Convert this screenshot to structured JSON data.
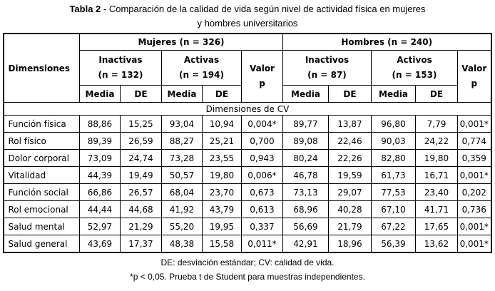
{
  "title": {
    "bold": "Tabla 2",
    "line1_rest": " - Comparación de la calidad de vida según nivel de actividad física en mujeres",
    "line2": "y hombres universitarios"
  },
  "table": {
    "corner_header": "Dimensiones",
    "section_header": "Dimensiones de CV",
    "media_label": "Media",
    "de_label": "DE",
    "valor_label": "Valor",
    "p_label": "p",
    "groups": [
      {
        "label": "Mujeres (n = 326)",
        "subgroups": [
          {
            "label": "Inactivas",
            "n": "(n = 132)"
          },
          {
            "label": "Activas",
            "n": "(n = 194)"
          }
        ]
      },
      {
        "label": "Hombres (n = 240)",
        "subgroups": [
          {
            "label": "Inactivos",
            "n": "(n = 87)"
          },
          {
            "label": "Activos",
            "n": "(n = 153)"
          }
        ]
      }
    ],
    "rows": [
      {
        "dimension": "Función física",
        "values": [
          "88,86",
          "15,25",
          "93,04",
          "10,94",
          "0,004*",
          "89,77",
          "13,87",
          "96,80",
          "7,79",
          "0,001*"
        ]
      },
      {
        "dimension": "Rol físico",
        "values": [
          "89,39",
          "26,59",
          "88,27",
          "25,21",
          "0,700",
          "89,08",
          "22,46",
          "90,03",
          "24,22",
          "0,774"
        ]
      },
      {
        "dimension": "Dolor corporal",
        "values": [
          "73,09",
          "24,74",
          "73,28",
          "23,55",
          "0,943",
          "80,24",
          "22,26",
          "82,80",
          "19,80",
          "0,359"
        ]
      },
      {
        "dimension": "Vitalidad",
        "values": [
          "44,39",
          "19,49",
          "50,57",
          "19,80",
          "0,006*",
          "46,78",
          "19,59",
          "61,73",
          "16,71",
          "0,001*"
        ]
      },
      {
        "dimension": "Función social",
        "values": [
          "66,86",
          "26,57",
          "68,04",
          "23,70",
          "0,673",
          "73,13",
          "29,07",
          "77,53",
          "23,40",
          "0,202"
        ]
      },
      {
        "dimension": "Rol emocional",
        "values": [
          "44,44",
          "44,68",
          "41,92",
          "43,79",
          "0,613",
          "68,96",
          "40,28",
          "67,10",
          "41,71",
          "0,736"
        ]
      },
      {
        "dimension": "Salud mental",
        "values": [
          "52,97",
          "21,29",
          "55,20",
          "19,95",
          "0,337",
          "56,69",
          "21,79",
          "67,22",
          "17,65",
          "0,001*"
        ]
      },
      {
        "dimension": "Salud general",
        "values": [
          "43,69",
          "17,37",
          "48,38",
          "15,58",
          "0,011*",
          "42,91",
          "18,96",
          "56,39",
          "13,62",
          "0,001*"
        ]
      }
    ]
  },
  "footnotes": [
    "DE: desviación estándar; CV: calidad de vida.",
    "*p < 0,05. Prueba t de Student para muestras independientes."
  ]
}
